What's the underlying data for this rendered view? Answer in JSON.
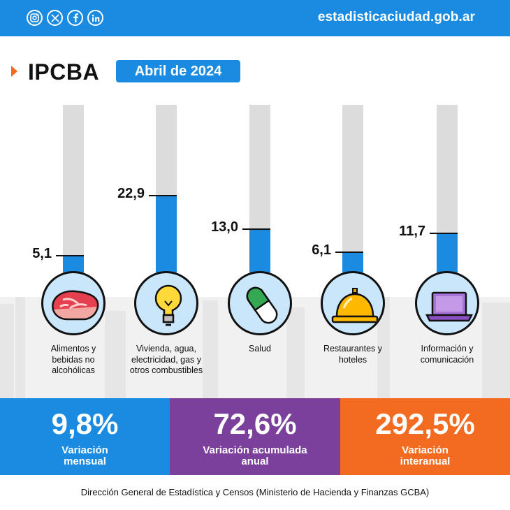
{
  "header": {
    "website": "estadisticaciudad.gob.ar",
    "social_icons": [
      "instagram-icon",
      "x-icon",
      "facebook-icon",
      "linkedin-icon"
    ],
    "background_color": "#1a8be0"
  },
  "title": {
    "text": "IPCBA",
    "date_badge": "Abril de 2024",
    "arrow_color": "#f26b21"
  },
  "chart_data": {
    "type": "bar",
    "categories": [
      "Alimentos y bebidas no alcohólicas",
      "Vivienda, agua, electricidad, gas y otros combustibles",
      "Salud",
      "Restaurantes y hoteles",
      "Información y comunicación"
    ],
    "values": [
      5.1,
      22.9,
      13.0,
      6.1,
      11.7
    ],
    "value_labels": [
      "5,1",
      "22,9",
      "13,0",
      "6,1",
      "11,7"
    ],
    "icons": [
      "meat-steak-icon",
      "light-bulb-icon",
      "pill-capsule-icon",
      "service-bell-icon",
      "laptop-icon"
    ],
    "ylim": [
      0,
      50
    ],
    "bar_color": "#1a8be0",
    "track_color": "#dcdcdc",
    "grid": false
  },
  "summary": [
    {
      "value": "9,8%",
      "label": "Variación mensual",
      "color": "#1a8be0"
    },
    {
      "value": "72,6%",
      "label": "Variación acumulada anual",
      "color": "#7b3f9c"
    },
    {
      "value": "292,5%",
      "label": "Variación interanual",
      "color": "#f26b21"
    }
  ],
  "footer": {
    "text": "Dirección General de Estadística y Censos (Ministerio de Hacienda y Finanzas GCBA)"
  }
}
